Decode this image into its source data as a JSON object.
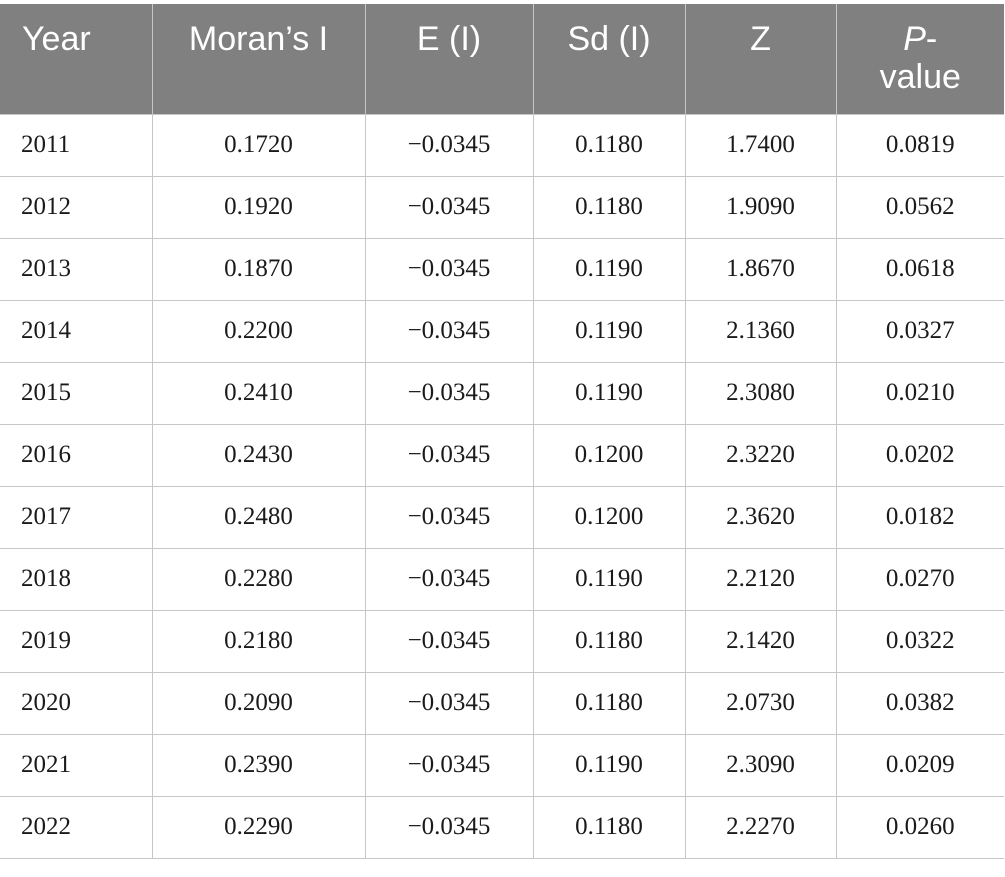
{
  "table": {
    "headers": {
      "year": "Year",
      "moran": "Moran’s I",
      "e": "E (I)",
      "sd": "Sd (I)",
      "z": "Z",
      "p_italic": "P",
      "p_line1_rest": "-",
      "p_line2": "value"
    },
    "rows": [
      {
        "year": "2011",
        "moran": "0.1720",
        "e": "−0.0345",
        "sd": "0.1180",
        "z": "1.7400",
        "p": "0.0819"
      },
      {
        "year": "2012",
        "moran": "0.1920",
        "e": "−0.0345",
        "sd": "0.1180",
        "z": "1.9090",
        "p": "0.0562"
      },
      {
        "year": "2013",
        "moran": "0.1870",
        "e": "−0.0345",
        "sd": "0.1190",
        "z": "1.8670",
        "p": "0.0618"
      },
      {
        "year": "2014",
        "moran": "0.2200",
        "e": "−0.0345",
        "sd": "0.1190",
        "z": "2.1360",
        "p": "0.0327"
      },
      {
        "year": "2015",
        "moran": "0.2410",
        "e": "−0.0345",
        "sd": "0.1190",
        "z": "2.3080",
        "p": "0.0210"
      },
      {
        "year": "2016",
        "moran": "0.2430",
        "e": "−0.0345",
        "sd": "0.1200",
        "z": "2.3220",
        "p": "0.0202"
      },
      {
        "year": "2017",
        "moran": "0.2480",
        "e": "−0.0345",
        "sd": "0.1200",
        "z": "2.3620",
        "p": "0.0182"
      },
      {
        "year": "2018",
        "moran": "0.2280",
        "e": "−0.0345",
        "sd": "0.1190",
        "z": "2.2120",
        "p": "0.0270"
      },
      {
        "year": "2019",
        "moran": "0.2180",
        "e": "−0.0345",
        "sd": "0.1180",
        "z": "2.1420",
        "p": "0.0322"
      },
      {
        "year": "2020",
        "moran": "0.2090",
        "e": "−0.0345",
        "sd": "0.1180",
        "z": "2.0730",
        "p": "0.0382"
      },
      {
        "year": "2021",
        "moran": "0.2390",
        "e": "−0.0345",
        "sd": "0.1190",
        "z": "2.3090",
        "p": "0.0209"
      },
      {
        "year": "2022",
        "moran": "0.2290",
        "e": "−0.0345",
        "sd": "0.1180",
        "z": "2.2270",
        "p": "0.0260"
      }
    ]
  }
}
